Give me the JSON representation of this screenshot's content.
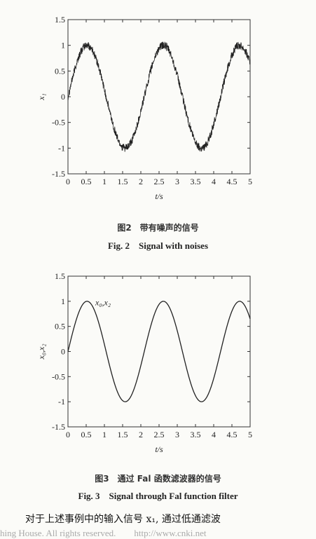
{
  "figure2": {
    "caption_cn": "图2　带有噪声的信号",
    "caption_en": "Fig. 2　Signal with noises",
    "chart_data": {
      "type": "line",
      "xlabel": "t/s",
      "ylabel": "x₁",
      "xlim": [
        0,
        5
      ],
      "ylim": [
        -1.5,
        1.5
      ],
      "xticks": [
        "0",
        "0.5",
        "1",
        "1.5",
        "2",
        "2.5",
        "3",
        "3.5",
        "4",
        "4.5",
        "5"
      ],
      "yticks": [
        "1.5",
        "1",
        "0.5",
        "0",
        "-0.5",
        "-1",
        "-1.5"
      ],
      "series": [
        {
          "name": "",
          "function": "sin(3t) + noise",
          "amplitude": 1,
          "angular_frequency": 3,
          "noise_amplitude": 0.08,
          "color": "#222222"
        }
      ]
    }
  },
  "figure3": {
    "caption_cn": "图3　通过 Fal 函数滤波器的信号",
    "caption_en": "Fig. 3　Signal through Fal function filter",
    "chart_data": {
      "type": "line",
      "xlabel": "t/s",
      "ylabel": "x₀,x₂",
      "xlim": [
        0,
        5
      ],
      "ylim": [
        -1.5,
        1.5
      ],
      "xticks": [
        "0",
        "0.5",
        "1",
        "1.5",
        "2",
        "2.5",
        "3",
        "3.5",
        "4",
        "4.5",
        "5"
      ],
      "yticks": [
        "1.5",
        "1",
        "0.5",
        "0",
        "-0.5",
        "-1",
        "-1.5"
      ],
      "annotation": "x₀,x₂",
      "series": [
        {
          "name": "x₀,x₂",
          "function": "sin(3t)",
          "amplitude": 1,
          "angular_frequency": 3,
          "noise_amplitude": 0,
          "color": "#222222"
        }
      ]
    }
  },
  "body_text": "对于上述事例中的输入信号 x₁, 通过低通滤波",
  "watermark": "hing House. All rights reserved.　　http://www.cnki.net"
}
